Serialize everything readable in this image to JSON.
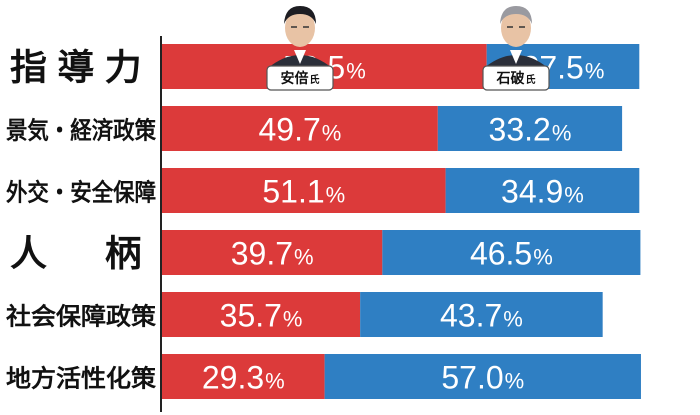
{
  "chart_data": {
    "type": "bar",
    "stacked": true,
    "orientation": "horizontal",
    "categories": [
      "指導力",
      "景気・経済政策",
      "外交・安全保障",
      "人　柄",
      "社会保障政策",
      "地方活性化策"
    ],
    "series": [
      {
        "name": "安倍氏",
        "values": [
          58.5,
          49.7,
          51.1,
          39.7,
          35.7,
          29.3
        ],
        "labels": [
          "58.5%",
          "49.7%",
          "51.1%",
          "39.7%",
          "35.7%",
          "29.3%"
        ]
      },
      {
        "name": "石破氏",
        "values": [
          27.5,
          33.2,
          34.9,
          46.5,
          43.7,
          57.0
        ],
        "labels": [
          "27.5%",
          "33.2%",
          "34.9%",
          "46.5%",
          "43.7%",
          "57.0%"
        ]
      }
    ],
    "unit": "%",
    "xlim": [
      0,
      100
    ],
    "grid": false,
    "legend": "candidate name tags with portraits above the first bar"
  },
  "colors": {
    "abe": "#dc3a3a",
    "ishiba": "#2f7fc3",
    "text": "#111111",
    "tag_border": "#555555",
    "axis": "#222222"
  },
  "portraits": [
    {
      "icon": "abe-portrait-icon",
      "name": "安倍氏"
    },
    {
      "icon": "ishiba-portrait-icon",
      "name": "石破氏"
    }
  ]
}
